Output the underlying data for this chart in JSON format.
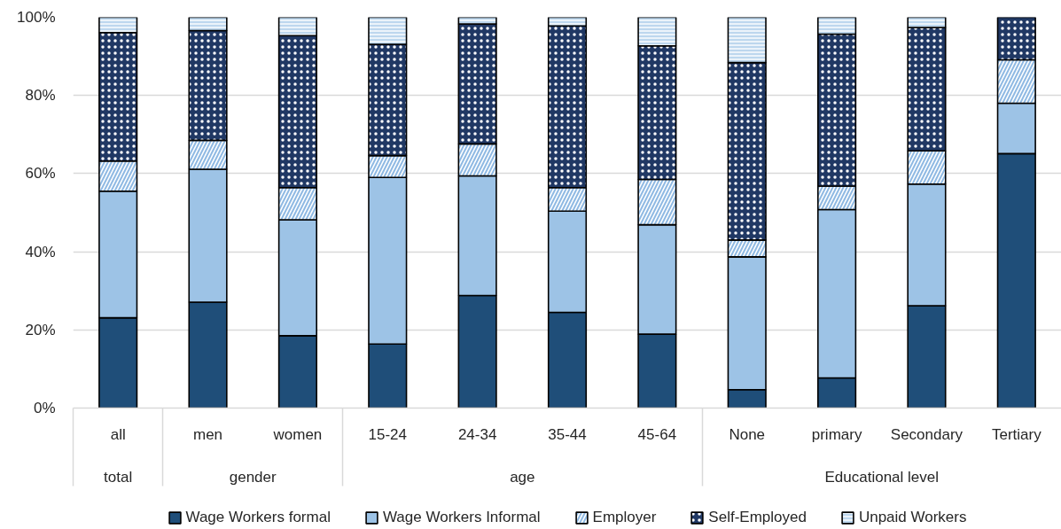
{
  "chart_data": {
    "type": "bar",
    "stacked": true,
    "categories": [
      "all",
      "men",
      "women",
      "15-24",
      "24-34",
      "35-44",
      "45-64",
      "None",
      "primary",
      "Secondary",
      "Tertiary"
    ],
    "series": [
      {
        "name": "Wage Workers formal",
        "color": "#1f4e79",
        "values": [
          23.1,
          27.1,
          18.5,
          16.4,
          28.8,
          24.5,
          18.9,
          4.7,
          7.7,
          26.2,
          65.1
        ]
      },
      {
        "name": "Wage Workers Informal",
        "color": "#9dc3e6",
        "values": [
          32.4,
          34.0,
          29.7,
          42.6,
          30.6,
          25.9,
          28.0,
          34.0,
          43.1,
          31.1,
          12.9
        ]
      },
      {
        "name": "Employer",
        "color": "#8fb9e3",
        "values": [
          7.7,
          7.4,
          8.2,
          5.6,
          8.2,
          6.0,
          11.6,
          4.3,
          6.0,
          8.5,
          11.1
        ]
      },
      {
        "name": "Self-Employed",
        "color": "#203864",
        "values": [
          32.9,
          28.1,
          38.9,
          28.5,
          30.7,
          41.4,
          34.2,
          45.4,
          38.9,
          31.6,
          10.9
        ]
      },
      {
        "name": "Unpaid Workers",
        "color": "#bdd7ee",
        "values": [
          3.9,
          3.4,
          4.7,
          6.9,
          1.7,
          2.2,
          7.3,
          11.6,
          4.3,
          2.6,
          0
        ]
      }
    ],
    "ylim": [
      0,
      100
    ],
    "yticks": [
      {
        "value": 0,
        "label": "0%"
      },
      {
        "value": 20,
        "label": "20%"
      },
      {
        "value": 40,
        "label": "40%"
      },
      {
        "value": 60,
        "label": "60%"
      },
      {
        "value": 80,
        "label": "80%"
      },
      {
        "value": 100,
        "label": "100%"
      }
    ],
    "annotations": [
      "total",
      "gender",
      "age",
      "Educational level"
    ],
    "grid": "y",
    "legend": "bottom"
  }
}
